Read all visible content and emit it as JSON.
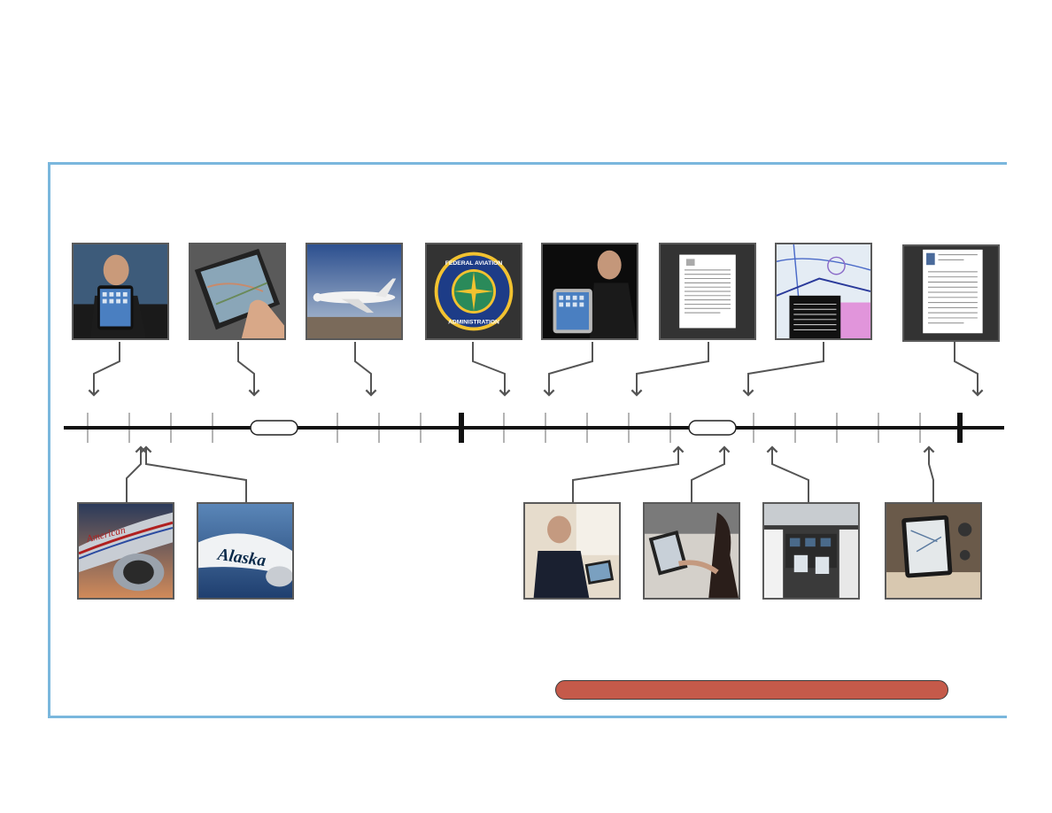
{
  "slide": {
    "title": ""
  },
  "timeline": {
    "break_markers": 2,
    "year_markers": 2,
    "annotation_bar": {
      "label": "",
      "color": "#c55a4a"
    }
  },
  "events_above": [
    {
      "name": "ipad-announcement",
      "image": "steve-jobs-holding-ipad"
    },
    {
      "name": "ipad-chart-use",
      "image": "hand-on-ipad-with-chart"
    },
    {
      "name": "business-jet",
      "image": "business-jet-in-flight"
    },
    {
      "name": "faa-authorization",
      "image": "faa-seal"
    },
    {
      "name": "ipad-2-announcement",
      "image": "steve-jobs-holding-ipad"
    },
    {
      "name": "faa-document",
      "image": "document-page"
    },
    {
      "name": "chart-display",
      "image": "aeronautical-chart-on-screen"
    },
    {
      "name": "faa-guidance-document",
      "image": "document-page"
    }
  ],
  "events_below": [
    {
      "name": "american-airlines",
      "image": "american-airlines-aircraft"
    },
    {
      "name": "alaska-airlines",
      "image": "alaska-airlines-aircraft"
    },
    {
      "name": "pilot-with-ipad",
      "image": "pilot-using-ipad"
    },
    {
      "name": "crew-with-ipad",
      "image": "crew-member-using-ipad"
    },
    {
      "name": "cockpit-ipads",
      "image": "pilots-with-ipads-in-cockpit"
    },
    {
      "name": "ipad-in-cockpit",
      "image": "ipad-mounted-in-cockpit"
    }
  ],
  "colors": {
    "frame": "#7ab7dd",
    "timeline": "#111111",
    "arrow": "#555555",
    "accent": "#c55a4a"
  }
}
